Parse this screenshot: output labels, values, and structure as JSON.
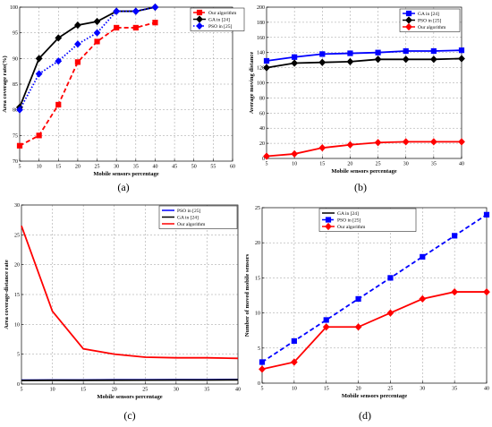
{
  "chart_data": [
    {
      "id": "a",
      "type": "line",
      "caption": "(a)",
      "xlabel": "Mobile sensors percentage",
      "ylabel": "Area coverage rate(%)",
      "xlim": [
        5,
        60
      ],
      "ylim": [
        70,
        100
      ],
      "xticks": [
        5,
        10,
        15,
        20,
        25,
        30,
        35,
        40,
        45,
        50,
        55,
        60
      ],
      "yticks": [
        70,
        75,
        80,
        85,
        90,
        95,
        100
      ],
      "grid": true,
      "legend_position": "top-right",
      "series": [
        {
          "name": "Our algorithm",
          "color": "#ff0000",
          "dash": "dashed",
          "marker": "square",
          "x": [
            5,
            10,
            15,
            20,
            25,
            30,
            35,
            40
          ],
          "y": [
            73,
            75,
            81,
            89.3,
            93.3,
            96,
            96,
            97
          ]
        },
        {
          "name": "GA in [24]",
          "color": "#000000",
          "dash": "solid",
          "marker": "diamond",
          "x": [
            5,
            10,
            15,
            20,
            25,
            30,
            35,
            40
          ],
          "y": [
            80.5,
            90,
            94,
            96.5,
            97.2,
            99.2,
            99.2,
            100
          ]
        },
        {
          "name": "PSO in [25]",
          "color": "#0000ff",
          "dash": "dotted",
          "marker": "diamond",
          "x": [
            5,
            10,
            15,
            20,
            25,
            30,
            35,
            40
          ],
          "y": [
            80,
            87,
            89.5,
            92.8,
            95,
            99.2,
            99.2,
            100
          ]
        }
      ]
    },
    {
      "id": "b",
      "type": "line",
      "caption": "(b)",
      "xlabel": "Mobile sensors percentage",
      "ylabel": "Average moving distance",
      "xlim": [
        5,
        40
      ],
      "ylim": [
        0,
        200
      ],
      "xticks": [
        5,
        10,
        15,
        20,
        25,
        30,
        35,
        40
      ],
      "yticks": [
        0,
        20,
        40,
        60,
        80,
        100,
        120,
        140,
        160,
        180,
        200
      ],
      "grid": true,
      "legend_position": "top-right",
      "series": [
        {
          "name": "GA in [24]",
          "color": "#0000ff",
          "dash": "solid",
          "marker": "square",
          "x": [
            5,
            10,
            15,
            20,
            25,
            30,
            35,
            40
          ],
          "y": [
            129,
            134,
            138,
            139,
            140,
            142,
            142,
            143
          ]
        },
        {
          "name": "PSO in [25]",
          "color": "#000000",
          "dash": "solid",
          "marker": "diamond",
          "x": [
            5,
            10,
            15,
            20,
            25,
            30,
            35,
            40
          ],
          "y": [
            120,
            126,
            127,
            128,
            131,
            131,
            131,
            132
          ]
        },
        {
          "name": "Our algorithm",
          "color": "#ff0000",
          "dash": "solid",
          "marker": "diamond",
          "x": [
            5,
            10,
            15,
            20,
            25,
            30,
            35,
            40
          ],
          "y": [
            3,
            6,
            14,
            18,
            21,
            22,
            22,
            22
          ]
        }
      ]
    },
    {
      "id": "c",
      "type": "line",
      "caption": "(c)",
      "xlabel": "Mobile sensors percentage",
      "ylabel": "Area coverage-distance rate",
      "xlim": [
        5,
        40
      ],
      "ylim": [
        0,
        30
      ],
      "xticks": [
        5,
        10,
        15,
        20,
        25,
        30,
        35,
        40
      ],
      "yticks": [
        0,
        5,
        10,
        15,
        20,
        25,
        30
      ],
      "grid": true,
      "legend_position": "top-right",
      "series": [
        {
          "name": "PSO in [25]",
          "color": "#0000ff",
          "dash": "solid",
          "marker": "none",
          "x": [
            5,
            10,
            15,
            20,
            25,
            30,
            35,
            40
          ],
          "y": [
            0.65,
            0.68,
            0.68,
            0.7,
            0.7,
            0.72,
            0.73,
            0.75
          ]
        },
        {
          "name": "GA in [24]",
          "color": "#000000",
          "dash": "solid",
          "marker": "none",
          "x": [
            5,
            10,
            15,
            20,
            25,
            30,
            35,
            40
          ],
          "y": [
            0.6,
            0.63,
            0.63,
            0.65,
            0.66,
            0.68,
            0.68,
            0.7
          ]
        },
        {
          "name": "Our algorithm",
          "color": "#ff0000",
          "dash": "solid",
          "marker": "none",
          "x": [
            5,
            10,
            15,
            20,
            25,
            30,
            35,
            40
          ],
          "y": [
            26.5,
            12.2,
            5.9,
            5.0,
            4.5,
            4.4,
            4.4,
            4.3
          ]
        }
      ]
    },
    {
      "id": "d",
      "type": "line",
      "caption": "(d)",
      "xlabel": "Mobile sensors percentage",
      "ylabel": "Number of moved mobile sensors",
      "xlim": [
        5,
        40
      ],
      "ylim": [
        0,
        25
      ],
      "xticks": [
        5,
        10,
        15,
        20,
        25,
        30,
        35,
        40
      ],
      "yticks": [
        0,
        5,
        10,
        15,
        20,
        25
      ],
      "grid": true,
      "legend_position": "top-left",
      "series": [
        {
          "name": "GA in [24]",
          "color": "#000000",
          "dash": "solid",
          "marker": "none",
          "x": [],
          "y": []
        },
        {
          "name": "PSO in [25]",
          "color": "#0000ff",
          "dash": "dashed",
          "marker": "square",
          "x": [
            5,
            10,
            15,
            20,
            25,
            30,
            35,
            40
          ],
          "y": [
            3,
            6,
            9,
            12,
            15,
            18,
            21,
            24
          ]
        },
        {
          "name": "Our algorithm",
          "color": "#ff0000",
          "dash": "solid",
          "marker": "diamond",
          "x": [
            5,
            10,
            15,
            20,
            25,
            30,
            35,
            40
          ],
          "y": [
            2,
            3,
            8,
            8,
            10,
            12,
            13,
            13
          ]
        }
      ]
    }
  ]
}
